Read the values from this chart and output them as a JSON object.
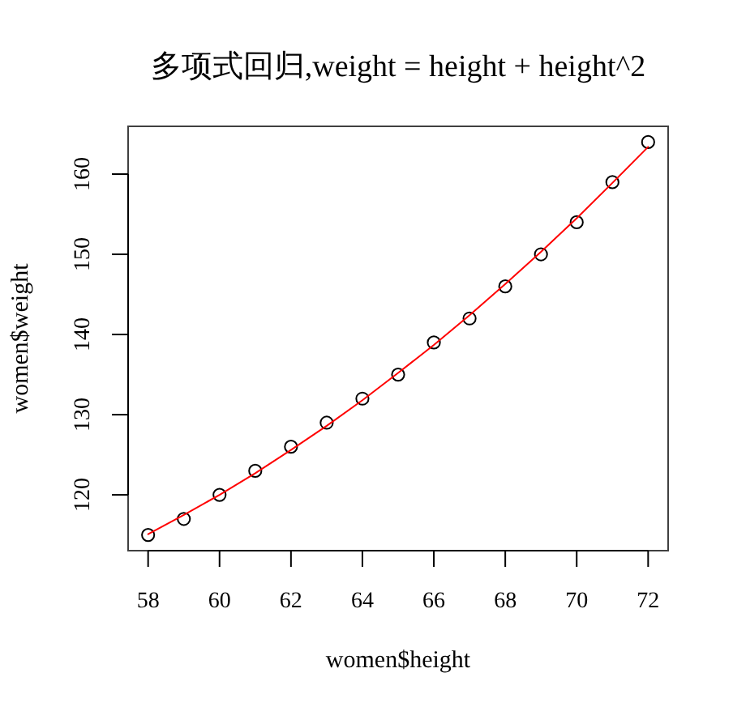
{
  "chart_data": {
    "type": "scatter",
    "title": "多项式回归,weight = height + height^2",
    "xlabel": "women$height",
    "ylabel": "women$weight",
    "x": [
      58,
      59,
      60,
      61,
      62,
      63,
      64,
      65,
      66,
      67,
      68,
      69,
      70,
      71,
      72
    ],
    "xlim": [
      57.44,
      72.56
    ],
    "ylim": [
      113.04,
      165.96
    ],
    "xticks": [
      58,
      60,
      62,
      64,
      66,
      68,
      70,
      72
    ],
    "yticks": [
      120,
      130,
      140,
      150,
      160
    ],
    "series": [
      {
        "color": "#000000",
        "marker": "circle",
        "values": [
          115,
          117,
          120,
          123,
          126,
          129,
          132,
          135,
          139,
          142,
          146,
          150,
          154,
          159,
          164
        ]
      },
      {
        "type": "line",
        "color": "#ff0000",
        "marker": "none",
        "line_style": "solid",
        "values": [
          115.1,
          117.5,
          120.0,
          122.7,
          125.6,
          128.6,
          131.8,
          135.2,
          138.7,
          142.4,
          146.3,
          150.3,
          154.5,
          158.9,
          163.4
        ]
      }
    ]
  }
}
